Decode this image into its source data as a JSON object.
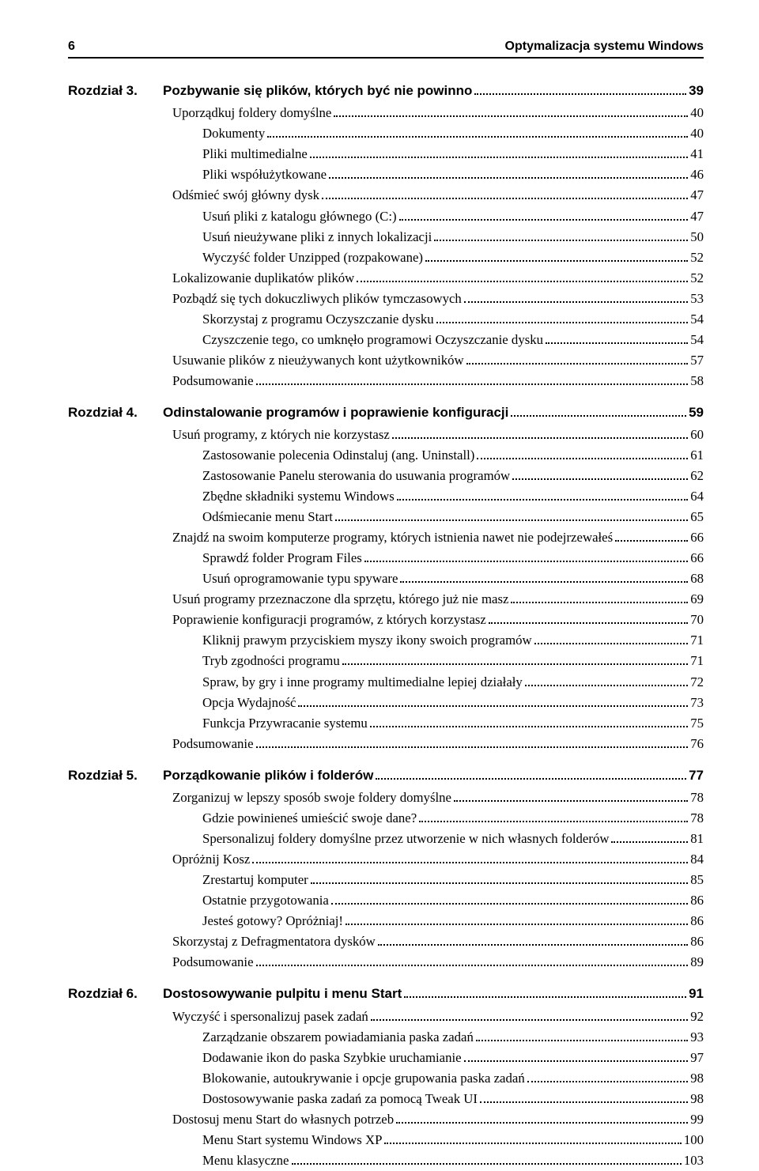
{
  "header": {
    "page_number": "6",
    "book_title": "Optymalizacja systemu Windows"
  },
  "chapters": [
    {
      "prefix": "Rozdział 3.",
      "title": "Pozbywanie się plików, których być nie powinno",
      "page": "39",
      "items": [
        {
          "l": 1,
          "t": "Uporządkuj foldery domyślne",
          "p": "40"
        },
        {
          "l": 2,
          "t": "Dokumenty",
          "p": "40"
        },
        {
          "l": 2,
          "t": "Pliki multimedialne",
          "p": "41"
        },
        {
          "l": 2,
          "t": "Pliki współużytkowane",
          "p": "46"
        },
        {
          "l": 1,
          "t": "Odśmieć swój główny dysk",
          "p": "47"
        },
        {
          "l": 2,
          "t": "Usuń pliki z katalogu głównego (C:)",
          "p": "47"
        },
        {
          "l": 2,
          "t": "Usuń nieużywane pliki z innych lokalizacji",
          "p": "50"
        },
        {
          "l": 2,
          "t": "Wyczyść folder Unzipped (rozpakowane)",
          "p": "52"
        },
        {
          "l": 1,
          "t": "Lokalizowanie duplikatów plików",
          "p": "52"
        },
        {
          "l": 1,
          "t": "Pozbądź się tych dokuczliwych plików tymczasowych",
          "p": "53"
        },
        {
          "l": 2,
          "t": "Skorzystaj z programu Oczyszczanie dysku",
          "p": "54"
        },
        {
          "l": 2,
          "t": "Czyszczenie tego, co umknęło programowi Oczyszczanie dysku",
          "p": "54"
        },
        {
          "l": 1,
          "t": "Usuwanie plików z nieużywanych kont użytkowników",
          "p": "57"
        },
        {
          "l": 1,
          "t": "Podsumowanie",
          "p": "58"
        }
      ]
    },
    {
      "prefix": "Rozdział 4.",
      "title": "Odinstalowanie programów i poprawienie konfiguracji",
      "page": "59",
      "items": [
        {
          "l": 1,
          "t": "Usuń programy, z których nie korzystasz",
          "p": "60"
        },
        {
          "l": 2,
          "t": "Zastosowanie polecenia Odinstaluj (ang. Uninstall)",
          "p": "61"
        },
        {
          "l": 2,
          "t": "Zastosowanie Panelu sterowania do usuwania programów",
          "p": "62"
        },
        {
          "l": 2,
          "t": "Zbędne składniki systemu Windows",
          "p": "64"
        },
        {
          "l": 2,
          "t": "Odśmiecanie menu Start",
          "p": "65"
        },
        {
          "l": 1,
          "t": "Znajdź na swoim komputerze programy, których istnienia nawet nie podejrzewałeś",
          "p": "66"
        },
        {
          "l": 2,
          "t": "Sprawdź folder Program Files",
          "p": "66"
        },
        {
          "l": 2,
          "t": "Usuń oprogramowanie typu spyware",
          "p": "68"
        },
        {
          "l": 1,
          "t": "Usuń programy przeznaczone dla sprzętu, którego już nie masz",
          "p": "69"
        },
        {
          "l": 1,
          "t": "Poprawienie konfiguracji programów, z których korzystasz",
          "p": "70"
        },
        {
          "l": 2,
          "t": "Kliknij prawym przyciskiem myszy ikony swoich programów",
          "p": "71"
        },
        {
          "l": 2,
          "t": "Tryb zgodności programu",
          "p": "71"
        },
        {
          "l": 2,
          "t": "Spraw, by gry i inne programy multimedialne lepiej działały",
          "p": "72"
        },
        {
          "l": 2,
          "t": "Opcja Wydajność",
          "p": "73"
        },
        {
          "l": 2,
          "t": "Funkcja Przywracanie systemu",
          "p": "75"
        },
        {
          "l": 1,
          "t": "Podsumowanie",
          "p": "76"
        }
      ]
    },
    {
      "prefix": "Rozdział 5.",
      "title": "Porządkowanie plików i folderów",
      "page": "77",
      "items": [
        {
          "l": 1,
          "t": "Zorganizuj w lepszy sposób swoje foldery domyślne",
          "p": "78"
        },
        {
          "l": 2,
          "t": "Gdzie powinieneś umieścić swoje dane?",
          "p": "78"
        },
        {
          "l": 2,
          "t": "Spersonalizuj foldery domyślne przez utworzenie w nich własnych folderów",
          "p": "81"
        },
        {
          "l": 1,
          "t": "Opróżnij Kosz",
          "p": "84"
        },
        {
          "l": 2,
          "t": "Zrestartuj komputer",
          "p": "85"
        },
        {
          "l": 2,
          "t": "Ostatnie przygotowania",
          "p": "86"
        },
        {
          "l": 2,
          "t": "Jesteś gotowy? Opróżniaj!",
          "p": "86"
        },
        {
          "l": 1,
          "t": "Skorzystaj z Defragmentatora dysków",
          "p": "86"
        },
        {
          "l": 1,
          "t": "Podsumowanie",
          "p": "89"
        }
      ]
    },
    {
      "prefix": "Rozdział 6.",
      "title": "Dostosowywanie pulpitu i menu Start",
      "page": "91",
      "items": [
        {
          "l": 1,
          "t": "Wyczyść i spersonalizuj pasek zadań",
          "p": "92"
        },
        {
          "l": 2,
          "t": "Zarządzanie obszarem powiadamiania paska zadań",
          "p": "93"
        },
        {
          "l": 2,
          "t": "Dodawanie ikon do paska Szybkie uruchamianie",
          "p": "97"
        },
        {
          "l": 2,
          "t": "Blokowanie, autoukrywanie i opcje grupowania paska zadań",
          "p": "98"
        },
        {
          "l": 2,
          "t": "Dostosowywanie paska zadań za pomocą Tweak UI",
          "p": "98"
        },
        {
          "l": 1,
          "t": "Dostosuj menu Start do własnych potrzeb",
          "p": "99"
        },
        {
          "l": 2,
          "t": "Menu Start systemu Windows XP",
          "p": "100"
        },
        {
          "l": 2,
          "t": "Menu klasyczne",
          "p": "103"
        }
      ]
    }
  ]
}
